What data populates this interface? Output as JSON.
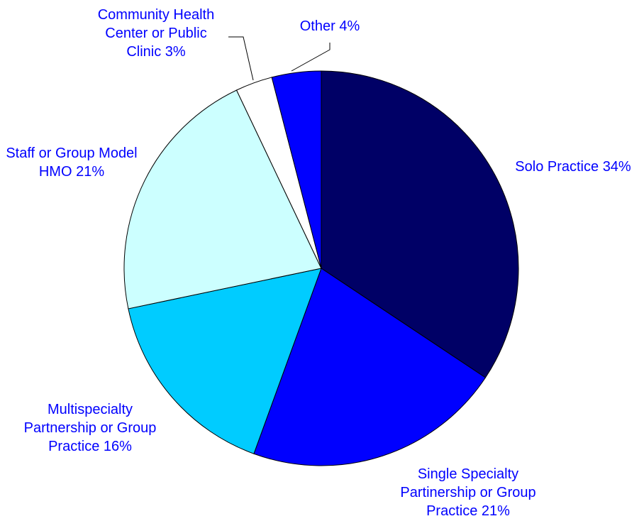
{
  "chart_data": {
    "type": "pie",
    "categories": [
      "Solo Practice",
      "Single Specialty Partinership or Group Practice",
      "Multispecialty Partnership or Group Practice",
      "Staff or Group Model HMO",
      "Community Health Center or Public Clinic",
      "Other"
    ],
    "values": [
      34,
      21,
      16,
      21,
      3,
      4
    ],
    "value_labels": [
      "34%",
      "21%",
      "16%",
      "21%",
      "3%",
      "4%"
    ],
    "colors": [
      "#000066",
      "#0000ff",
      "#00ccff",
      "#ccffff",
      "#ffffff",
      "#0000ff"
    ]
  }
}
